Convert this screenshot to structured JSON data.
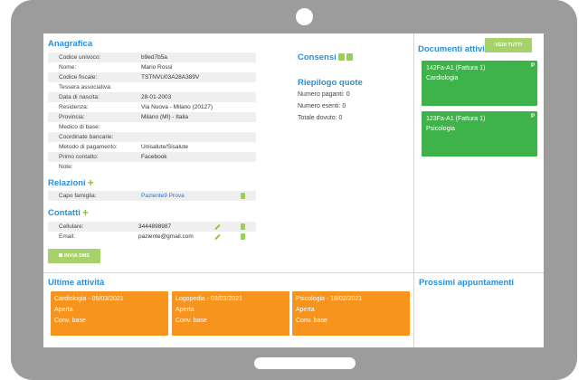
{
  "anagrafica": {
    "title": "Anagrafica",
    "fields": [
      {
        "label": "Codice univoco:",
        "value": "b9ed7b5a"
      },
      {
        "label": "Nome:",
        "value": "Mario Rossi"
      },
      {
        "label": "Codice fiscale:",
        "value": "TSTNVU03A28A389V"
      },
      {
        "label": "Tessera associativa:",
        "value": ""
      },
      {
        "label": "Data di nascita:",
        "value": "28-01-2003"
      },
      {
        "label": "Residenza:",
        "value": "Via Nuova - Milano (20127)"
      },
      {
        "label": "Provincia:",
        "value": "Milano (MI) - Italia"
      },
      {
        "label": "Medico di base:",
        "value": ""
      },
      {
        "label": "Coordinate bancarie:",
        "value": ""
      },
      {
        "label": "Metodo di pagamento:",
        "value": "Unisalute/Sisalute"
      },
      {
        "label": "Primo contatto:",
        "value": "Facebook"
      },
      {
        "label": "Note:",
        "value": ""
      }
    ]
  },
  "relazioni": {
    "title": "Relazioni",
    "fields": [
      {
        "label": "Capo famiglia:",
        "value": "Paziente9 Prova"
      }
    ]
  },
  "contatti": {
    "title": "Contatti",
    "fields": [
      {
        "label": "Cellulare:",
        "value": "3444898987"
      },
      {
        "label": "Email:",
        "value": "paziente@gmail.com"
      }
    ]
  },
  "sms_button": "INVIA SMS",
  "consensi": {
    "title": "Consensi"
  },
  "riepilogo": {
    "title": "Riepilogo quote",
    "lines": [
      "Numero paganti: 0",
      "Numero esenti: 0",
      "Totale dovuto: 0"
    ]
  },
  "documenti": {
    "title": "Documenti attivi",
    "button": "VEDI TUTTI",
    "cards": [
      {
        "title": "142Fa-A1 (Fattura 1)",
        "subtitle": "Cardiologia",
        "flag": "P"
      },
      {
        "title": "123Fa-A1 (Fattura 1)",
        "subtitle": "Psicologia",
        "flag": "P"
      }
    ]
  },
  "ultime_attivita": {
    "title": "Ultime attività",
    "cards": [
      {
        "title": "Cardiologia - 05/03/2021",
        "status": "Aperta",
        "convention": "Conv. base"
      },
      {
        "title": "Logopedia - 03/03/2021",
        "status": "Aperta",
        "convention": "Conv. base"
      },
      {
        "title": "Psicologia - 18/02/2021",
        "status": "Aperta",
        "convention": "Conv. base"
      }
    ]
  },
  "appuntamenti": {
    "title": "Prossimi appuntamenti"
  },
  "colors": {
    "frame": "#9c9c9c",
    "heading": "#2a8fd8",
    "accent_green": "#8cc63f",
    "document_card": "#3db34a",
    "activity_card": "#f7941d",
    "link": "#2a6fd8"
  }
}
